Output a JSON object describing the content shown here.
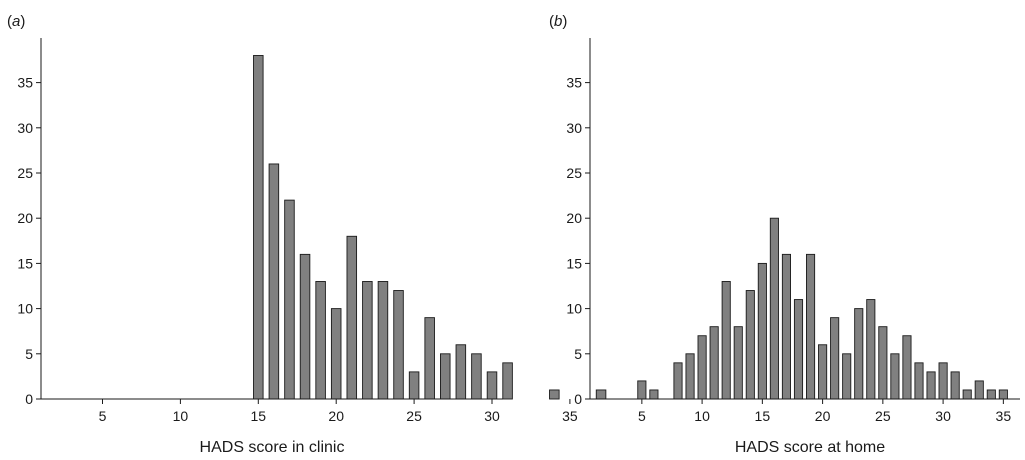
{
  "chart_data": [
    {
      "panel_label": "(a)",
      "panel_letter": "a",
      "type": "bar",
      "xlabel": "HADS score in clinic",
      "ylabel": "",
      "xlim": [
        1,
        39
      ],
      "ylim": [
        0,
        40
      ],
      "x_ticks": [
        5,
        10,
        15,
        20,
        25,
        30,
        35
      ],
      "y_ticks": [
        0,
        5,
        10,
        15,
        20,
        25,
        30,
        35
      ],
      "grid": false,
      "bar_color": "#808080",
      "x": [
        15,
        16,
        17,
        18,
        19,
        20,
        21,
        22,
        23,
        24,
        25,
        26,
        27,
        28,
        29,
        30,
        31,
        34,
        37
      ],
      "values": [
        38,
        26,
        22,
        16,
        13,
        10,
        18,
        13,
        13,
        12,
        3,
        9,
        5,
        6,
        5,
        3,
        4,
        1,
        1
      ]
    },
    {
      "panel_label": "(b)",
      "panel_letter": "b",
      "type": "bar",
      "xlabel": "HADS score at home",
      "ylabel": "",
      "xlim": [
        1,
        36
      ],
      "ylim": [
        0,
        40
      ],
      "x_ticks": [
        5,
        10,
        15,
        20,
        25,
        30,
        35
      ],
      "y_ticks": [
        0,
        5,
        10,
        15,
        20,
        25,
        30,
        35
      ],
      "grid": false,
      "bar_color": "#808080",
      "x": [
        5,
        6,
        8,
        9,
        10,
        11,
        12,
        13,
        14,
        15,
        16,
        17,
        18,
        19,
        20,
        21,
        22,
        23,
        24,
        25,
        26,
        27,
        28,
        29,
        30,
        31,
        32,
        33,
        34,
        35
      ],
      "values": [
        2,
        1,
        4,
        5,
        7,
        8,
        13,
        8,
        12,
        15,
        20,
        16,
        11,
        16,
        6,
        9,
        5,
        10,
        11,
        8,
        5,
        7,
        4,
        3,
        4,
        3,
        1,
        2,
        1,
        1
      ]
    }
  ]
}
